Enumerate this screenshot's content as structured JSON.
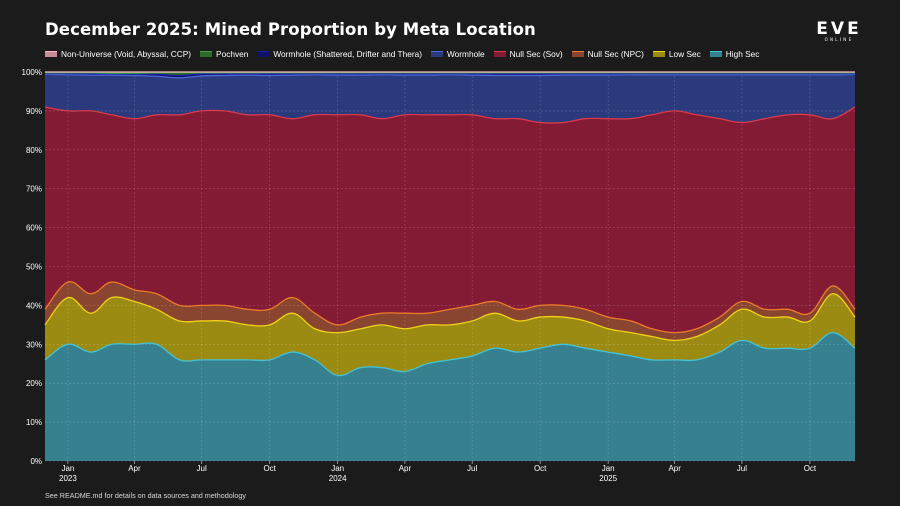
{
  "title": "December 2025: Mined Proportion by Meta Location",
  "logo": {
    "word": "EVE",
    "sub": "ONLINE"
  },
  "footnote": "See README.md for details on data sources and methodology",
  "chart_data": {
    "type": "area",
    "stacked": true,
    "normalized": true,
    "title": "December 2025: Mined Proportion by Meta Location",
    "ylim": [
      0,
      100
    ],
    "y_ticks": [
      "0%",
      "10%",
      "20%",
      "30%",
      "40%",
      "50%",
      "60%",
      "70%",
      "80%",
      "90%",
      "100%"
    ],
    "x_range": [
      "2022-12-01",
      "2025-12-01"
    ],
    "x_ticks": [
      {
        "date": "2023-01-01",
        "label": "Jan",
        "year": "2023"
      },
      {
        "date": "2023-04-01",
        "label": "Apr",
        "year": ""
      },
      {
        "date": "2023-07-01",
        "label": "Jul",
        "year": ""
      },
      {
        "date": "2023-10-01",
        "label": "Oct",
        "year": ""
      },
      {
        "date": "2024-01-01",
        "label": "Jan",
        "year": "2024"
      },
      {
        "date": "2024-04-01",
        "label": "Apr",
        "year": ""
      },
      {
        "date": "2024-07-01",
        "label": "Jul",
        "year": ""
      },
      {
        "date": "2024-10-01",
        "label": "Oct",
        "year": ""
      },
      {
        "date": "2025-01-01",
        "label": "Jan",
        "year": "2025"
      },
      {
        "date": "2025-04-01",
        "label": "Apr",
        "year": ""
      },
      {
        "date": "2025-07-01",
        "label": "Jul",
        "year": ""
      },
      {
        "date": "2025-10-01",
        "label": "Oct",
        "year": ""
      }
    ],
    "legend": [
      "Non-Universe (Void, Abyssal, CCP)",
      "Pochven",
      "Wormhole (Shattered, Drifter and Thera)",
      "Wormhole",
      "Null Sec (Sov)",
      "Null Sec (NPC)",
      "Low Sec",
      "High Sec"
    ],
    "x": [
      "2022-12",
      "2023-01",
      "2023-02",
      "2023-03",
      "2023-04",
      "2023-05",
      "2023-06",
      "2023-07",
      "2023-08",
      "2023-09",
      "2023-10",
      "2023-11",
      "2023-12",
      "2024-01",
      "2024-02",
      "2024-03",
      "2024-04",
      "2024-05",
      "2024-06",
      "2024-07",
      "2024-08",
      "2024-09",
      "2024-10",
      "2024-11",
      "2024-12",
      "2025-01",
      "2025-02",
      "2025-03",
      "2025-04",
      "2025-05",
      "2025-06",
      "2025-07",
      "2025-08",
      "2025-09",
      "2025-10",
      "2025-11",
      "2025-12"
    ],
    "cumulative_boundaries": {
      "High Sec": [
        26,
        30,
        28,
        30,
        30,
        30,
        26,
        26,
        26,
        26,
        26,
        28,
        26,
        22,
        24,
        24,
        23,
        25,
        26,
        27,
        29,
        28,
        29,
        30,
        29,
        28,
        27,
        26,
        26,
        26,
        28,
        31,
        29,
        29,
        29,
        33,
        29
      ],
      "Low Sec": [
        35,
        42,
        38,
        42,
        41,
        39,
        36,
        36,
        36,
        35,
        35,
        38,
        34,
        33,
        34,
        35,
        34,
        35,
        35,
        36,
        38,
        36,
        37,
        37,
        36,
        34,
        33,
        32,
        31,
        32,
        35,
        39,
        37,
        37,
        36,
        43,
        37
      ],
      "Null Sec (NPC)": [
        39,
        46,
        43,
        46,
        44,
        43,
        40,
        40,
        40,
        39,
        39,
        42,
        38,
        35,
        37,
        38,
        38,
        38,
        39,
        40,
        41,
        39,
        40,
        40,
        39,
        37,
        36,
        34,
        33,
        34,
        37,
        41,
        39,
        39,
        38,
        45,
        39
      ],
      "Null Sec (Sov)": [
        91,
        90,
        90,
        89,
        88,
        89,
        89,
        90,
        90,
        89,
        89,
        88,
        89,
        89,
        89,
        88,
        89,
        89,
        89,
        89,
        88,
        88,
        87,
        87,
        88,
        88,
        88,
        89,
        90,
        89,
        88,
        87,
        88,
        89,
        89,
        88,
        91
      ],
      "Wormhole": [
        99.4,
        99.3,
        99.2,
        99.2,
        99.1,
        98.9,
        98.5,
        99.0,
        99.1,
        99.2,
        99.1,
        99.2,
        99.3,
        99.2,
        99.2,
        99.3,
        99.2,
        99.2,
        99.3,
        99.2,
        99.1,
        99.1,
        99.1,
        99.2,
        99.2,
        99.2,
        99.3,
        99.3,
        99.3,
        99.3,
        99.3,
        99.3,
        99.3,
        99.3,
        99.3,
        99.3,
        99.4
      ],
      "Wormhole (Shattered, Drifter and Thera)": [
        99.6,
        99.6,
        99.5,
        99.5,
        99.5,
        99.4,
        99.1,
        99.5,
        99.5,
        99.5,
        99.5,
        99.5,
        99.6,
        99.6,
        99.5,
        99.6,
        99.6,
        99.6,
        99.6,
        99.6,
        99.5,
        99.5,
        99.5,
        99.6,
        99.6,
        99.6,
        99.6,
        99.6,
        99.6,
        99.6,
        99.6,
        99.6,
        99.6,
        99.6,
        99.6,
        99.6,
        99.6
      ],
      "Pochven": [
        99.8,
        99.8,
        99.8,
        99.7,
        99.7,
        99.8,
        99.9,
        99.8,
        99.8,
        99.8,
        99.8,
        99.8,
        99.8,
        99.8,
        99.8,
        99.8,
        99.8,
        99.8,
        99.8,
        99.8,
        99.8,
        99.8,
        99.8,
        99.8,
        99.8,
        99.8,
        99.8,
        99.8,
        99.8,
        99.8,
        99.8,
        99.8,
        99.8,
        99.8,
        99.8,
        99.8,
        99.8
      ],
      "Non-Universe (Void, Abyssal, CCP)": [
        100,
        100,
        100,
        100,
        100,
        100,
        100,
        100,
        100,
        100,
        100,
        100,
        100,
        100,
        100,
        100,
        100,
        100,
        100,
        100,
        100,
        100,
        100,
        100,
        100,
        100,
        100,
        100,
        100,
        100,
        100,
        100,
        100,
        100,
        100,
        100,
        100
      ]
    },
    "stack_order": [
      "High Sec",
      "Low Sec",
      "Null Sec (NPC)",
      "Null Sec (Sov)",
      "Wormhole",
      "Wormhole (Shattered, Drifter and Thera)",
      "Pochven",
      "Non-Universe (Void, Abyssal, CCP)"
    ],
    "colors": {
      "High Sec": {
        "fill": "#37808f",
        "line": "#45c2d4"
      },
      "Low Sec": {
        "fill": "#9c8b12",
        "line": "#f0d21a"
      },
      "Null Sec (NPC)": {
        "fill": "#8a4530",
        "line": "#ee7a2a"
      },
      "Null Sec (Sov)": {
        "fill": "#831b35",
        "line": "#d83a4a"
      },
      "Wormhole": {
        "fill": "#2b3a7d",
        "line": "#4a6cd8"
      },
      "Wormhole (Shattered, Drifter and Thera)": {
        "fill": "#101266",
        "line": "#1a1aa8"
      },
      "Pochven": {
        "fill": "#2d6a2d",
        "line": "#3ea03e"
      },
      "Non-Universe (Void, Abyssal, CCP)": {
        "fill": "#c98c96",
        "line": "#ffb6c1"
      }
    },
    "grid": true,
    "legend_position": "top-left"
  }
}
